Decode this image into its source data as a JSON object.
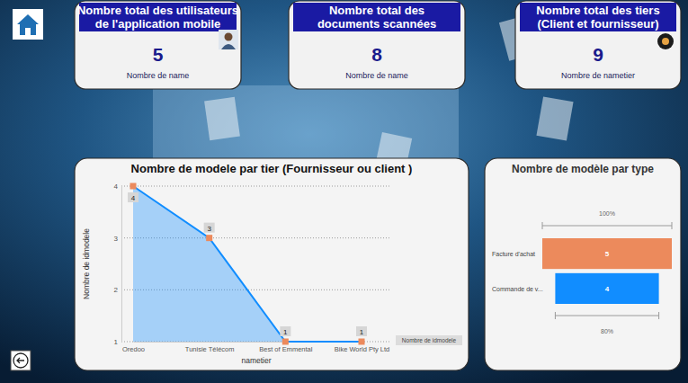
{
  "cards": [
    {
      "title": [
        "Nombre total des utilisateurs",
        "de l'application mobile"
      ],
      "value": 5,
      "label": "Nombre de name"
    },
    {
      "title": [
        "Nombre total des",
        "documents scannées"
      ],
      "value": 8,
      "label": "Nombre de name"
    },
    {
      "title": [
        "Nombre total des tiers",
        "(Client et fournisseur)"
      ],
      "value": 9,
      "label": "Nombre de nametier"
    }
  ],
  "chart_data": [
    {
      "type": "area",
      "title": "Nombre de modele par tier (Fournisseur ou client )",
      "x_label": "nametier",
      "y_label": "Nombre de idmodele",
      "categories": [
        "Oredoo",
        "Tunisie Télécom",
        "Best of Emmental",
        "Bike World Pty Ltd"
      ],
      "series": [
        {
          "name": "Nombre de idmodele",
          "color": "#118DFF",
          "values": [
            4,
            3,
            1,
            1
          ],
          "marker": "square"
        }
      ],
      "ylim": [
        1,
        4
      ],
      "yticks": [
        1,
        2,
        3,
        4
      ],
      "grid": true,
      "data_labels": true,
      "legend": "bottom-right"
    },
    {
      "type": "funnel",
      "title": "Nombre de modèle par type",
      "categories": [
        "Facture d'achat",
        "Commande de v..."
      ],
      "values": [
        5,
        4
      ],
      "colors": [
        "#EC8A5C",
        "#118DFF"
      ],
      "data_labels": true,
      "conversion_labels": [
        {
          "value": 100,
          "label": "100%"
        },
        {
          "value": 80,
          "label": "80%"
        }
      ]
    }
  ]
}
